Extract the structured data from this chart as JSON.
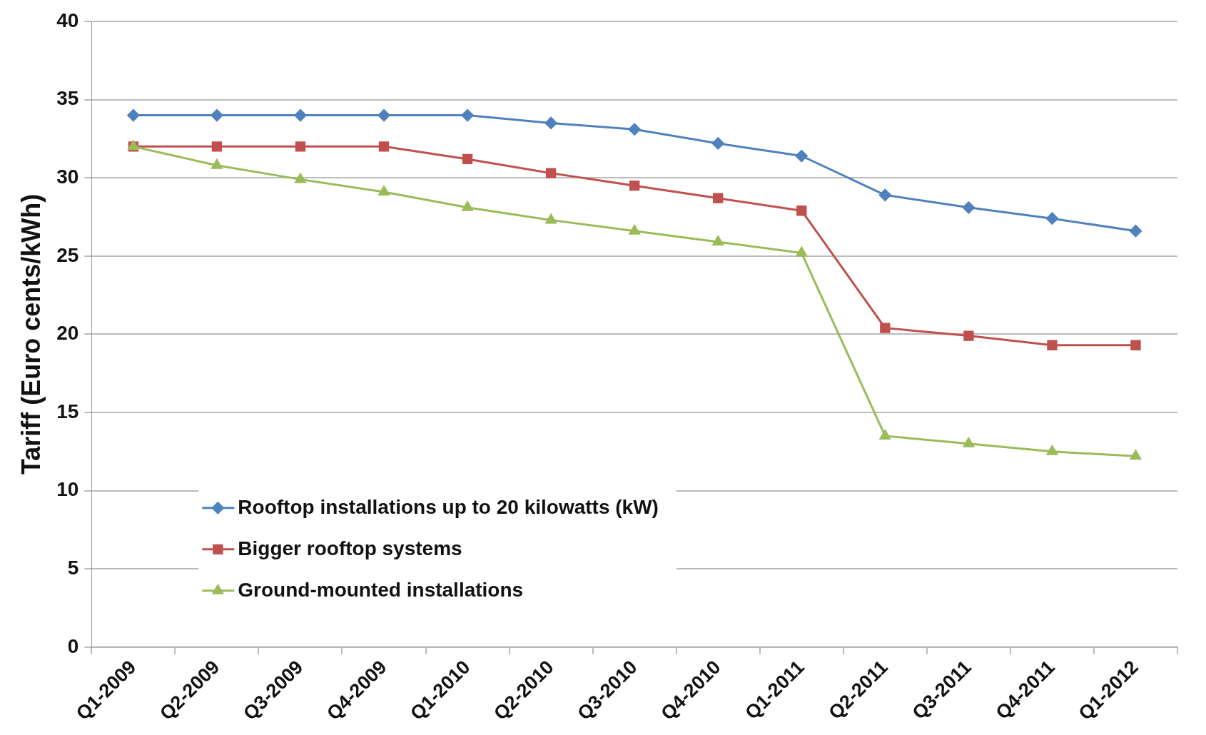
{
  "chart_data": {
    "type": "line",
    "ylabel": "Tariff (Euro cents/kWh)",
    "categories": [
      "Q1-2009",
      "Q2-2009",
      "Q3-2009",
      "Q4-2009",
      "Q1-2010",
      "Q2-2010",
      "Q3-2010",
      "Q4-2010",
      "Q1-2011",
      "Q2-2011",
      "Q3-2011",
      "Q4-2011",
      "Q1-2012"
    ],
    "series": [
      {
        "name": "Rooftop installations up to 20 kilowatts (kW)",
        "color": "#4f81bd",
        "marker": "diamond",
        "values": [
          34,
          34,
          34,
          34,
          34,
          33.5,
          33.1,
          32.2,
          31.4,
          28.9,
          28.1,
          27.4,
          26.6
        ]
      },
      {
        "name": "Bigger rooftop systems",
        "color": "#c0504d",
        "marker": "square",
        "values": [
          32,
          32,
          32,
          32,
          31.2,
          30.3,
          29.5,
          28.7,
          27.9,
          20.4,
          19.9,
          19.3,
          19.3
        ]
      },
      {
        "name": "Ground-mounted installations",
        "color": "#9bbb59",
        "marker": "triangle",
        "values": [
          32,
          30.8,
          29.9,
          29.1,
          28.1,
          27.3,
          26.6,
          25.9,
          25.2,
          13.5,
          13.0,
          12.5,
          12.2
        ]
      }
    ],
    "ylim": [
      0,
      40
    ],
    "yticks": [
      0,
      5,
      10,
      15,
      20,
      25,
      30,
      35,
      40
    ],
    "grid": "y",
    "legend": "bottom left",
    "line_style": "solid"
  }
}
